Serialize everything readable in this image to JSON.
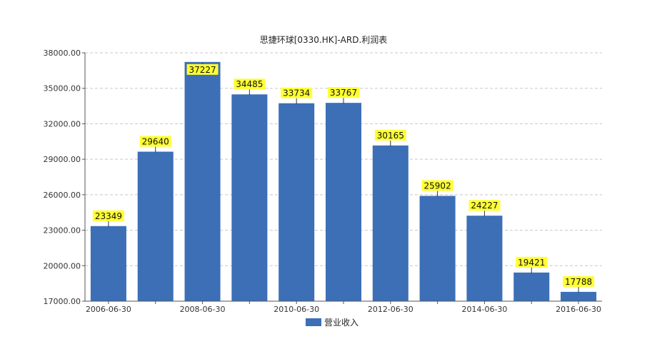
{
  "chart_data": {
    "type": "bar",
    "title": "思捷环球[0330.HK]-ARD.利润表",
    "xlabel": "",
    "ylabel": "",
    "ylim": [
      17000,
      38000
    ],
    "yticks": [
      "17000.00",
      "20000.00",
      "23000.00",
      "26000.00",
      "29000.00",
      "32000.00",
      "35000.00",
      "38000.00"
    ],
    "categories": [
      "2006-06-30",
      "2007-06-30",
      "2008-06-30",
      "2009-06-30",
      "2010-06-30",
      "2011-06-30",
      "2012-06-30",
      "2013-06-30",
      "2014-06-30",
      "2015-06-30",
      "2016-06-30"
    ],
    "xtick_labels": [
      "2006-06-30",
      "",
      "2008-06-30",
      "",
      "2010-06-30",
      "",
      "2012-06-30",
      "",
      "2014-06-30",
      "",
      "2016-06-30"
    ],
    "series": [
      {
        "name": "营业收入",
        "values": [
          23349,
          29640,
          37227,
          34485,
          33734,
          33767,
          30165,
          25902,
          24227,
          19421,
          17788
        ],
        "color": "#3c6fb6"
      }
    ],
    "data_label_bg": "#ffff33",
    "grid": true,
    "legend": "bottom"
  }
}
